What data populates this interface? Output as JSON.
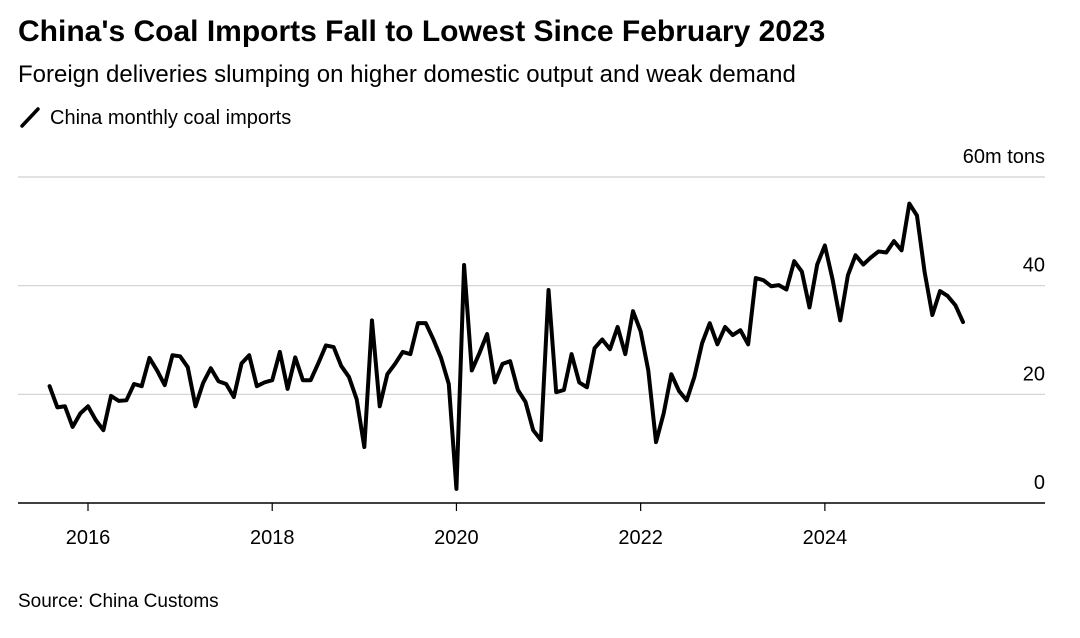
{
  "chart_data": {
    "type": "line",
    "title": "China's Coal Imports Fall to Lowest Since February 2023",
    "subtitle": "Foreign deliveries slumping on higher domestic output and weak demand",
    "source": "Source: China Customs",
    "x": [
      2015.583,
      2015.667,
      2015.75,
      2015.833,
      2015.917,
      2016,
      2016.083,
      2016.167,
      2016.25,
      2016.333,
      2016.417,
      2016.5,
      2016.583,
      2016.667,
      2016.75,
      2016.833,
      2016.917,
      2017,
      2017.083,
      2017.167,
      2017.25,
      2017.333,
      2017.417,
      2017.5,
      2017.583,
      2017.667,
      2017.75,
      2017.833,
      2017.917,
      2018,
      2018.083,
      2018.167,
      2018.25,
      2018.333,
      2018.417,
      2018.5,
      2018.583,
      2018.667,
      2018.75,
      2018.833,
      2018.917,
      2019,
      2019.083,
      2019.167,
      2019.25,
      2019.333,
      2019.417,
      2019.5,
      2019.583,
      2019.667,
      2019.75,
      2019.833,
      2019.917,
      2020,
      2020.083,
      2020.167,
      2020.25,
      2020.333,
      2020.417,
      2020.5,
      2020.583,
      2020.667,
      2020.75,
      2020.833,
      2020.917,
      2021,
      2021.083,
      2021.167,
      2021.25,
      2021.333,
      2021.417,
      2021.5,
      2021.583,
      2021.667,
      2021.75,
      2021.833,
      2021.917,
      2022,
      2022.083,
      2022.167,
      2022.25,
      2022.333,
      2022.417,
      2022.5,
      2022.583,
      2022.667,
      2022.75,
      2022.833,
      2022.917,
      2023,
      2023.083,
      2023.167,
      2023.25,
      2023.333,
      2023.417,
      2023.5,
      2023.583,
      2023.667,
      2023.75,
      2023.833,
      2023.917,
      2024,
      2024.083,
      2024.167,
      2024.25,
      2024.333,
      2024.417,
      2024.5,
      2024.583,
      2024.667,
      2024.75,
      2024.833,
      2024.917,
      2025,
      2025.083,
      2025.167,
      2025.25,
      2025.333,
      2025.417,
      2025.5
    ],
    "series": [
      {
        "name": "China monthly coal imports",
        "color": "#000000",
        "values": [
          21.5,
          17.6,
          17.8,
          14.0,
          16.5,
          17.8,
          15.3,
          13.4,
          19.7,
          18.8,
          18.9,
          21.9,
          21.5,
          26.7,
          24.4,
          21.7,
          27.2,
          27.0,
          25.0,
          17.8,
          22.1,
          24.8,
          22.4,
          21.9,
          19.5,
          25.7,
          27.2,
          21.5,
          22.2,
          22.6,
          27.8,
          21.0,
          26.8,
          22.6,
          22.6,
          25.7,
          29.0,
          28.7,
          25.2,
          23.2,
          19.1,
          10.3,
          33.6,
          17.8,
          23.7,
          25.6,
          27.8,
          27.4,
          33.1,
          33.1,
          30.1,
          26.7,
          21.9,
          2.6,
          43.8,
          24.4,
          27.6,
          31.1,
          22.2,
          25.6,
          26.1,
          20.8,
          18.6,
          13.4,
          11.6,
          39.2,
          20.4,
          20.8,
          27.4,
          22.2,
          21.3,
          28.5,
          30.1,
          28.3,
          32.4,
          27.4,
          35.3,
          31.6,
          24.4,
          11.2,
          16.5,
          23.7,
          20.6,
          18.9,
          23.2,
          29.4,
          33.1,
          29.2,
          32.4,
          30.9,
          31.8,
          29.2,
          41.4,
          41.0,
          39.9,
          40.1,
          39.3,
          44.5,
          42.6,
          36.0,
          43.9,
          47.4,
          41.2,
          33.6,
          41.9,
          45.6,
          43.9,
          45.2,
          46.3,
          46.1,
          48.2,
          46.5,
          55.1,
          52.9,
          42.5,
          34.6,
          39.0,
          38.1,
          36.4,
          33.3
        ]
      }
    ],
    "xlim": [
      2015.24,
      2026.39
    ],
    "xticks": [
      2016,
      2018,
      2020,
      2022,
      2024
    ],
    "ylim": [
      0,
      60
    ],
    "yticks": [
      0,
      20,
      40,
      {
        "value": 60,
        "label": "60m tons"
      }
    ],
    "grid": true
  }
}
